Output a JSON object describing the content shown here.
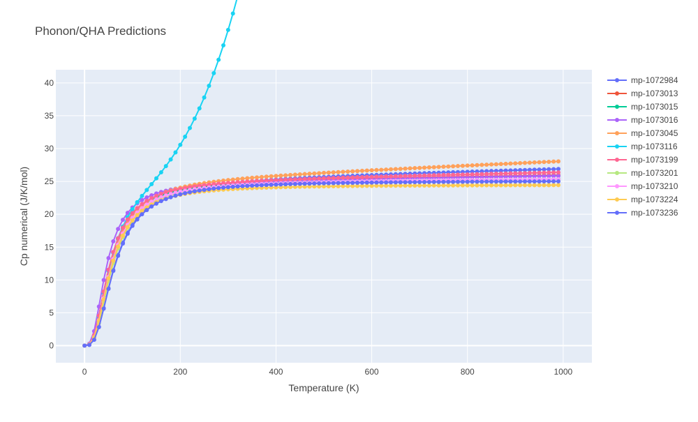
{
  "title": "Phonon/QHA Predictions",
  "chart_data": {
    "type": "line",
    "mode": "lines+markers",
    "title": "Phonon/QHA Predictions",
    "xlabel": "Temperature (K)",
    "ylabel": "Cp numerical (J/K/mol)",
    "xlim": [
      -60,
      1060
    ],
    "ylim": [
      -2.6,
      42
    ],
    "x_ticks": [
      0,
      200,
      400,
      600,
      800,
      1000
    ],
    "y_ticks": [
      0,
      5,
      10,
      15,
      20,
      25,
      30,
      35,
      40
    ],
    "grid": true,
    "legend_position": "right",
    "x": {
      "start": 0,
      "step": 10,
      "count": 100
    },
    "series": [
      {
        "name": "mp-1072984",
        "color": "#636efa",
        "theta": 260,
        "cinf": 25.0,
        "a": 0.002,
        "b": 0
      },
      {
        "name": "mp-1073013",
        "color": "#ef553b",
        "theta": 215,
        "cinf": 25.0,
        "a": 0.001,
        "b": 0
      },
      {
        "name": "mp-1073015",
        "color": "#00cc96",
        "theta": 215,
        "cinf": 24.9,
        "a": 0.0005,
        "b": 0
      },
      {
        "name": "mp-1073016",
        "color": "#ab63fa",
        "theta": 190,
        "cinf": 24.9,
        "a": 0.001,
        "b": 0
      },
      {
        "name": "mp-1073045",
        "color": "#ffa15a",
        "theta": 228,
        "cinf": 24.95,
        "a": 0.0032,
        "b": 0
      },
      {
        "name": "mp-1073116",
        "color": "#19d3f3",
        "theta": 218,
        "cinf": 24.95,
        "a": 0.0,
        "b": 8.8e-07
      },
      {
        "name": "mp-1073199",
        "color": "#ff6692",
        "theta": 215,
        "cinf": 24.95,
        "a": 0.0015,
        "b": 0
      },
      {
        "name": "mp-1073201",
        "color": "#b6e880",
        "theta": 240,
        "cinf": 24.9,
        "a": 0.0005,
        "b": 0
      },
      {
        "name": "mp-1073210",
        "color": "#ff97ff",
        "theta": 230,
        "cinf": 24.9,
        "a": 0.0005,
        "b": 0
      },
      {
        "name": "mp-1073224",
        "color": "#fecb52",
        "theta": 230,
        "cinf": 24.5,
        "a": 0.0,
        "b": 0
      },
      {
        "name": "mp-1073236",
        "color": "#636efa",
        "theta": 260,
        "cinf": 25.0,
        "a": 0.0001,
        "b": 0
      }
    ]
  }
}
